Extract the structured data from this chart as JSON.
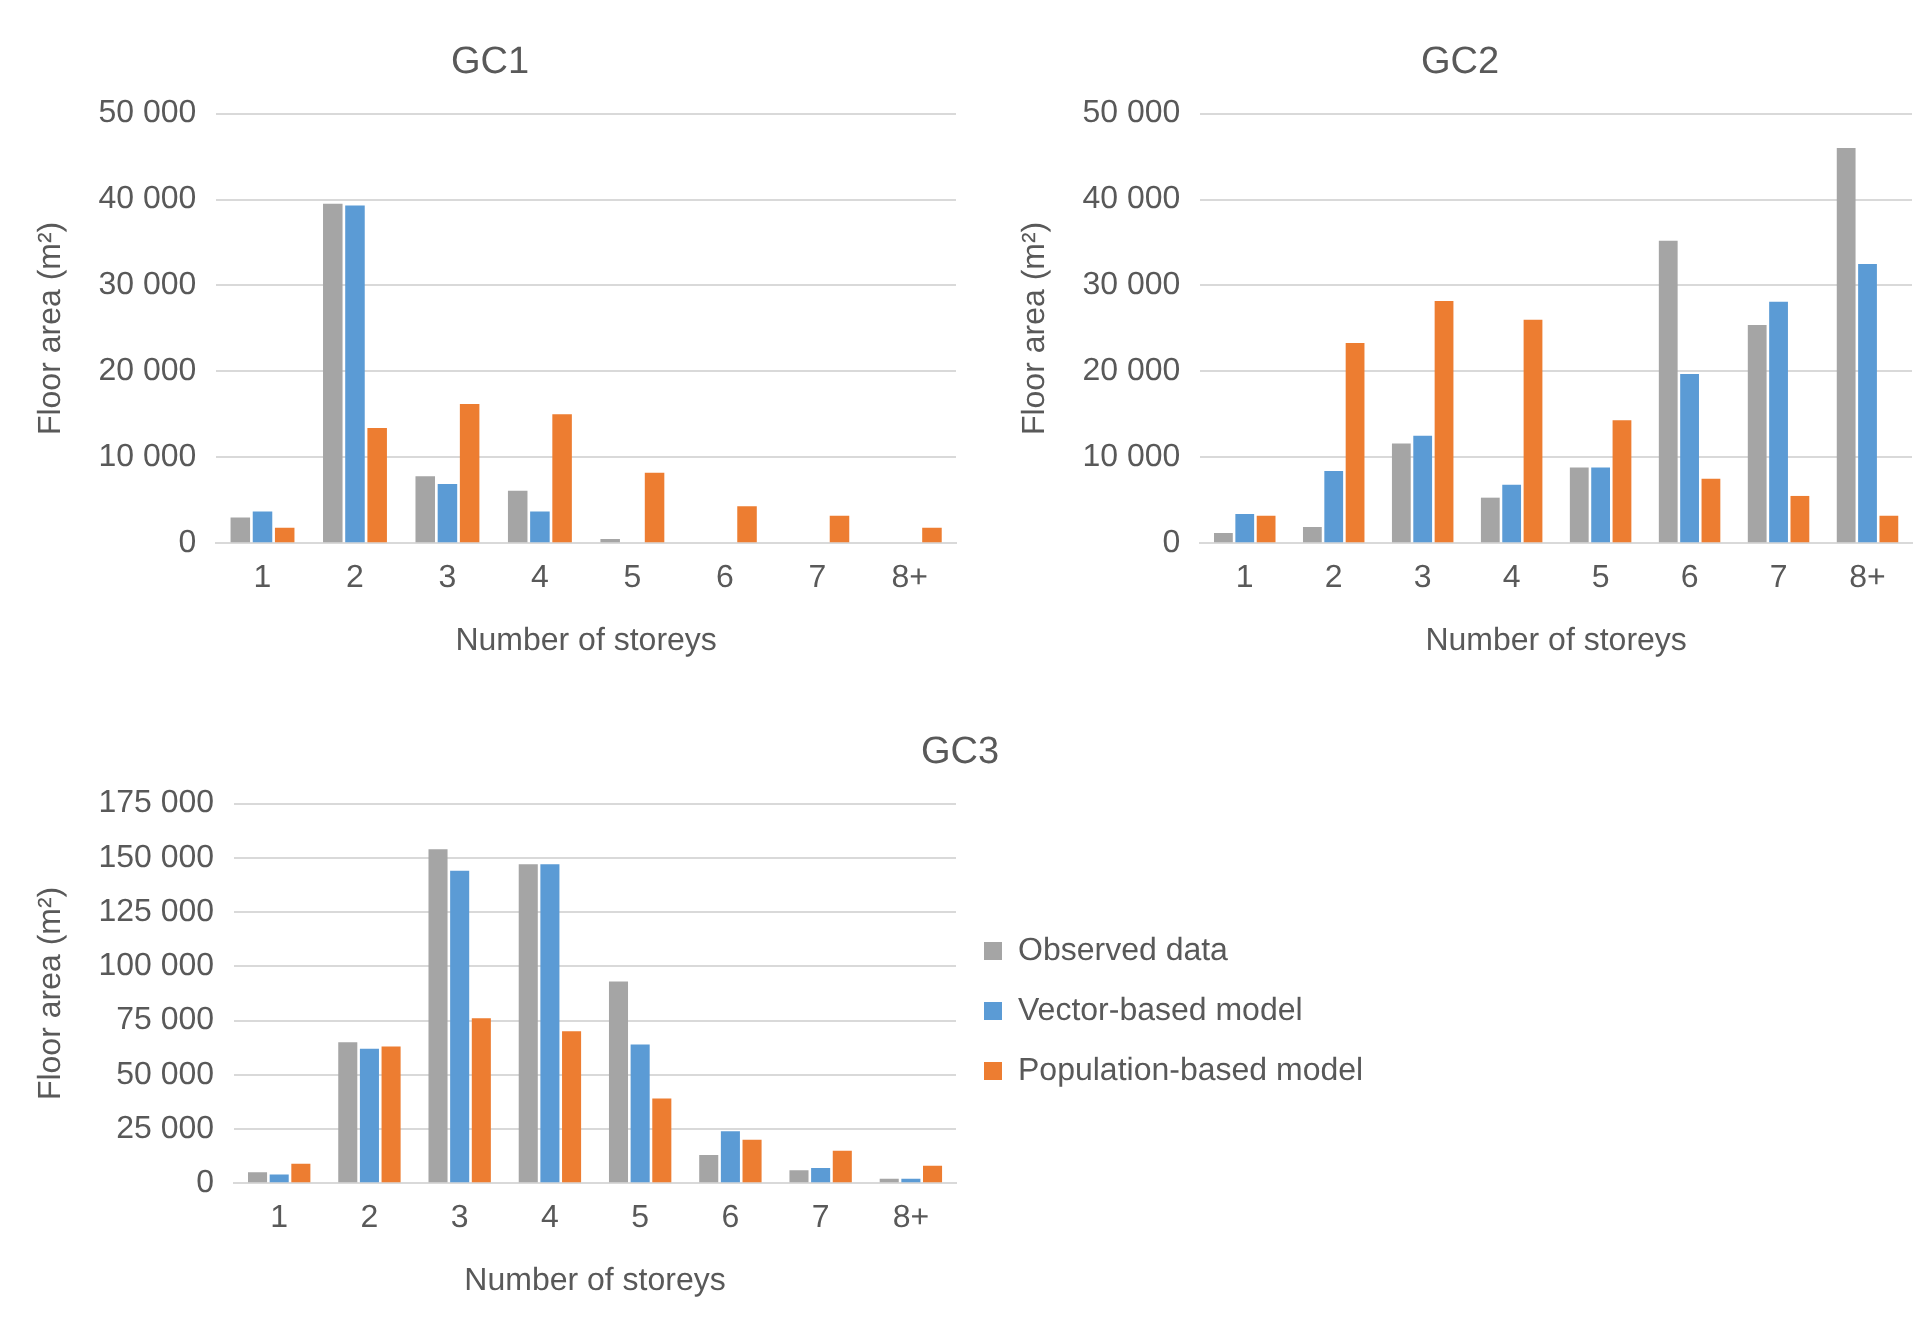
{
  "chart_data": [
    {
      "type": "bar",
      "title": "GC1",
      "xlabel": "Number of storeys",
      "ylabel": "Floor area (m²)",
      "categories": [
        "1",
        "2",
        "3",
        "4",
        "5",
        "6",
        "7",
        "8+"
      ],
      "ylim": [
        0,
        50000
      ],
      "yticks": [
        {
          "value": 0,
          "label": "0"
        },
        {
          "value": 10000,
          "label": "10 000"
        },
        {
          "value": 20000,
          "label": "20 000"
        },
        {
          "value": 30000,
          "label": "30 000"
        },
        {
          "value": 40000,
          "label": "40 000"
        },
        {
          "value": 50000,
          "label": "50 000"
        }
      ],
      "grid": "y",
      "legend": false,
      "series": [
        {
          "color": "#a5a5a5",
          "values": [
            3000,
            39500,
            7800,
            6100,
            500,
            0,
            0,
            0
          ]
        },
        {
          "color": "#5b9bd5",
          "values": [
            3700,
            39300,
            6900,
            3700,
            0,
            0,
            0,
            0
          ]
        },
        {
          "color": "#ed7d31",
          "values": [
            1800,
            13400,
            16200,
            15000,
            8200,
            4300,
            3200,
            1800
          ]
        }
      ]
    },
    {
      "type": "bar",
      "title": "GC2",
      "xlabel": "Number of storeys",
      "ylabel": "Floor area (m²)",
      "categories": [
        "1",
        "2",
        "3",
        "4",
        "5",
        "6",
        "7",
        "8+"
      ],
      "ylim": [
        0,
        50000
      ],
      "yticks": [
        {
          "value": 0,
          "label": "0"
        },
        {
          "value": 10000,
          "label": "10 000"
        },
        {
          "value": 20000,
          "label": "20 000"
        },
        {
          "value": 30000,
          "label": "30 000"
        },
        {
          "value": 40000,
          "label": "40 000"
        },
        {
          "value": 50000,
          "label": "50 000"
        }
      ],
      "grid": "y",
      "legend": false,
      "series": [
        {
          "color": "#a5a5a5",
          "values": [
            1200,
            1900,
            11600,
            5300,
            8800,
            35200,
            25400,
            46000
          ]
        },
        {
          "color": "#5b9bd5",
          "values": [
            3400,
            8400,
            12500,
            6800,
            8800,
            19700,
            28100,
            32500
          ]
        },
        {
          "color": "#ed7d31",
          "values": [
            3200,
            23300,
            28200,
            26000,
            14300,
            7500,
            5500,
            3200
          ]
        }
      ]
    },
    {
      "type": "bar",
      "title": "GC3",
      "xlabel": "Number of storeys",
      "ylabel": "Floor area (m²)",
      "categories": [
        "1",
        "2",
        "3",
        "4",
        "5",
        "6",
        "7",
        "8+"
      ],
      "ylim": [
        0,
        175000
      ],
      "yticks": [
        {
          "value": 0,
          "label": "0"
        },
        {
          "value": 25000,
          "label": "25 000"
        },
        {
          "value": 50000,
          "label": "50 000"
        },
        {
          "value": 75000,
          "label": "75 000"
        },
        {
          "value": 100000,
          "label": "100 000"
        },
        {
          "value": 125000,
          "label": "125 000"
        },
        {
          "value": 150000,
          "label": "150 000"
        },
        {
          "value": 175000,
          "label": "175 000"
        }
      ],
      "grid": "y",
      "legend": "right",
      "series": [
        {
          "name": "Observed data",
          "color": "#a5a5a5",
          "values": [
            5000,
            65000,
            154000,
            147000,
            93000,
            13000,
            6000,
            2000
          ]
        },
        {
          "name": "Vector-based model",
          "color": "#5b9bd5",
          "values": [
            4000,
            62000,
            144000,
            147000,
            64000,
            24000,
            7000,
            2000
          ]
        },
        {
          "name": "Population-based model",
          "color": "#ed7d31",
          "values": [
            9000,
            63000,
            76000,
            70000,
            39000,
            20000,
            15000,
            8000
          ]
        }
      ]
    }
  ]
}
